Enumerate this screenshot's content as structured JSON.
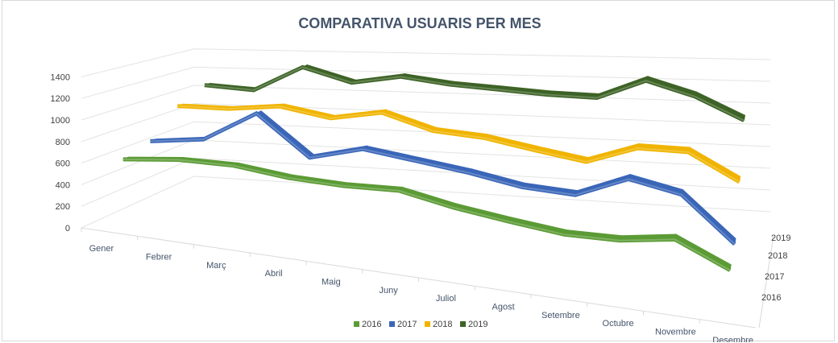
{
  "chart_data": {
    "type": "line",
    "subtype": "3d-line",
    "title": "COMPARATIVA  USUARIS PER MES",
    "categories": [
      "Gener",
      "Febrer",
      "Març",
      "Abril",
      "Maig",
      "Juny",
      "Juliol",
      "Agost",
      "Setembre",
      "Octubre",
      "Novembre",
      "Desembre"
    ],
    "yticks": [
      "0",
      "200",
      "400",
      "600",
      "800",
      "1000",
      "1200",
      "1400"
    ],
    "ylim": [
      0,
      1400
    ],
    "depth_labels": [
      "2016",
      "2017",
      "2018",
      "2019"
    ],
    "grid": true,
    "legend_position": "bottom",
    "series": [
      {
        "name": "2016",
        "color": "#5b9b35",
        "values": [
          620,
          680,
          690,
          640,
          630,
          650,
          560,
          500,
          450,
          460,
          530,
          330
        ]
      },
      {
        "name": "2017",
        "color": "#3a66b8",
        "values": [
          690,
          760,
          1060,
          690,
          820,
          760,
          700,
          620,
          600,
          790,
          700,
          320
        ]
      },
      {
        "name": "2018",
        "color": "#f0b400",
        "values": [
          940,
          950,
          1010,
          930,
          1020,
          880,
          850,
          770,
          700,
          860,
          860,
          630
        ]
      },
      {
        "name": "2019",
        "color": "#3d6326",
        "values": [
          1060,
          1030,
          1290,
          1150,
          1230,
          1170,
          1140,
          1110,
          1100,
          1280,
          1150,
          950
        ]
      }
    ]
  }
}
